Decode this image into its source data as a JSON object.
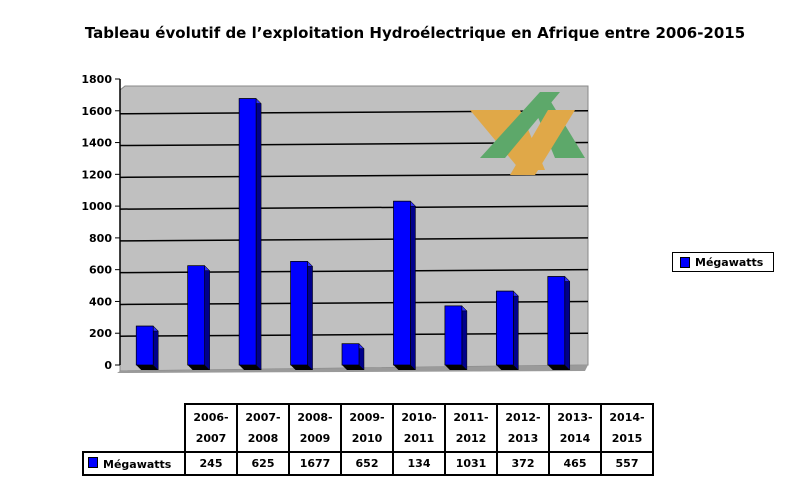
{
  "chart_data": {
    "type": "bar",
    "title": "Tableau évolutif de l’exploitation Hydroélectrique en Afrique entre 2006-2015",
    "categories": [
      "2006-2007",
      "2007-2008",
      "2008-2009",
      "2009-2010",
      "2010-2011",
      "2011-2012",
      "2012-2013",
      "2013-2014",
      "2014-2015"
    ],
    "series": [
      {
        "name": "Mégawatts",
        "values": [
          245,
          625,
          1677,
          652,
          134,
          1031,
          372,
          465,
          557
        ],
        "color": "#0000ff"
      }
    ],
    "ylim": [
      0,
      1800
    ],
    "yticks": [
      0,
      200,
      400,
      600,
      800,
      1000,
      1200,
      1400,
      1600,
      1800
    ],
    "grid": true,
    "legend": "right",
    "plot_background": "#c0c0c0"
  }
}
